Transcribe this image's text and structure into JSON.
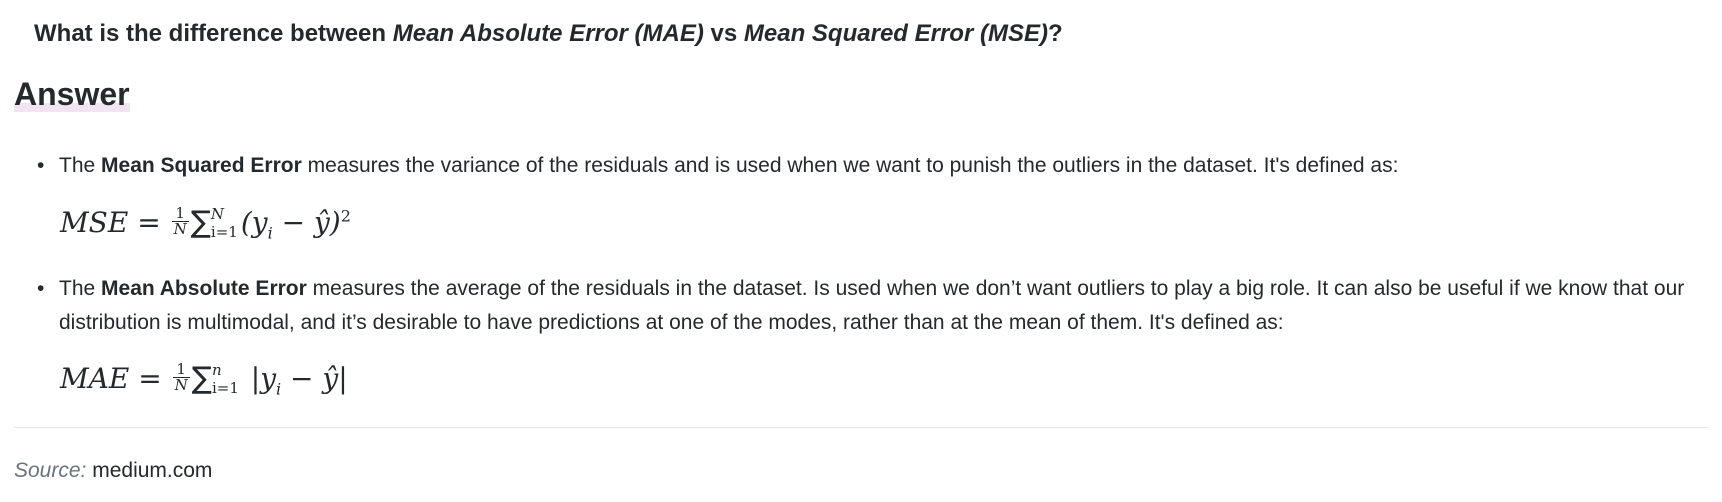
{
  "question": {
    "prefix": "What is the difference between ",
    "term1": "Mean Absolute Error (MAE)",
    "middle": " vs ",
    "term2": "Mean Squared Error (MSE)",
    "suffix": "?"
  },
  "answer_heading": "Answer",
  "items": [
    {
      "bullet": "•",
      "lead": "The ",
      "bold": "Mean Squared Error",
      "text": " measures the variance of the residuals and is used when we want to punish the outliers in the dataset. It's defined as:"
    },
    {
      "bullet": "•",
      "lead": "The ",
      "bold": "Mean Absolute Error",
      "text": " measures the average of the residuals in the dataset. Is used when we don’t want outliers to play a big role. It can also be useful if we know that our distribution is multimodal, and it’s desirable to have predictions at one of the modes, rather than at the mean of them. It's defined as:"
    }
  ],
  "formulas": {
    "mse": {
      "lhs": "MSE",
      "eq": " = ",
      "frac_num": "1",
      "frac_den": "N",
      "sigma": "∑",
      "upper": "N",
      "lower": "i=1",
      "body_open": "(y",
      "sub": "i",
      "body_mid": " − ŷ)",
      "sup": "2"
    },
    "mae": {
      "lhs": "MAE",
      "eq": " = ",
      "frac_num": "1",
      "frac_den": "N",
      "sigma": "∑",
      "upper": "n",
      "lower": "i=1",
      "body_open": " |y",
      "sub": "i",
      "body_mid": " − ŷ|"
    }
  },
  "source": {
    "label": "Source:",
    "value": "medium.com"
  }
}
